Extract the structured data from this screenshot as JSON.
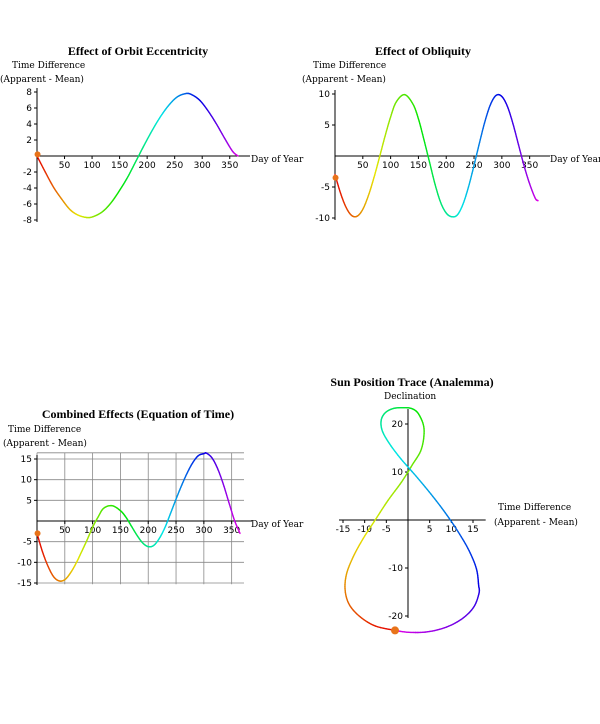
{
  "chart_data": [
    {
      "type": "line",
      "title": "Effect of Orbit Eccentricity",
      "ylabel": "Time Difference (Apparent - Mean)",
      "xlabel": "Day of Year",
      "xlim": [
        0,
        365
      ],
      "ylim": [
        -8,
        8
      ],
      "xticks": [
        50,
        100,
        150,
        200,
        250,
        300,
        350
      ],
      "yticks": [
        8,
        6,
        4,
        2,
        -2,
        -4,
        -6,
        -8
      ],
      "grid": false,
      "color": "rainbow gradient by day of year",
      "start_marker": {
        "x": 1,
        "y": 0.2
      },
      "x": [
        0,
        15,
        30,
        45,
        60,
        75,
        92,
        105,
        120,
        135,
        150,
        165,
        180,
        195,
        210,
        225,
        240,
        255,
        270,
        280,
        295,
        310,
        325,
        340,
        355,
        365
      ],
      "y": [
        0.0,
        -2.0,
        -3.9,
        -5.4,
        -6.7,
        -7.4,
        -7.7,
        -7.5,
        -6.9,
        -5.8,
        -4.3,
        -2.6,
        -0.6,
        1.4,
        3.3,
        5.0,
        6.4,
        7.4,
        7.8,
        7.7,
        7.0,
        5.7,
        4.1,
        2.3,
        0.6,
        0.0
      ]
    },
    {
      "type": "line",
      "title": "Effect of Obliquity",
      "ylabel": "Time Difference (Apparent - Mean)",
      "xlabel": "Day of Year",
      "xlim": [
        0,
        365
      ],
      "ylim": [
        -10,
        10
      ],
      "xticks": [
        50,
        100,
        150,
        200,
        250,
        300,
        350
      ],
      "yticks": [
        10,
        5,
        -5,
        -10
      ],
      "grid": false,
      "color": "rainbow gradient by day of year",
      "start_marker": {
        "x": 1,
        "y": -3.5
      },
      "x": [
        0,
        10,
        20,
        30,
        40,
        50,
        60,
        70,
        80,
        90,
        100,
        110,
        125,
        140,
        150,
        160,
        170,
        180,
        190,
        200,
        210,
        220,
        230,
        240,
        250,
        260,
        270,
        280,
        290,
        300,
        310,
        320,
        330,
        340,
        350,
        360,
        365
      ],
      "y": [
        -3.0,
        -6.0,
        -8.3,
        -9.6,
        -9.7,
        -8.6,
        -6.4,
        -3.5,
        -0.2,
        3.2,
        6.3,
        8.7,
        9.9,
        8.4,
        6.0,
        2.6,
        -1.0,
        -4.6,
        -7.5,
        -9.2,
        -9.8,
        -9.5,
        -7.8,
        -5.0,
        -1.5,
        2.2,
        5.7,
        8.4,
        9.8,
        9.6,
        8.0,
        5.2,
        1.8,
        -1.6,
        -4.5,
        -6.8,
        -7.2
      ]
    },
    {
      "type": "line",
      "title": "Combined Effects (Equation of Time)",
      "ylabel": "Time Difference (Apparent - Mean)",
      "xlabel": "Day of Year",
      "xlim": [
        0,
        365
      ],
      "ylim": [
        -15,
        15
      ],
      "xticks": [
        50,
        100,
        150,
        200,
        250,
        300,
        350
      ],
      "yticks": [
        15,
        10,
        5,
        -5,
        -10,
        -15
      ],
      "grid": true,
      "color": "rainbow gradient by day of year",
      "start_marker": {
        "x": 1,
        "y": -3.0
      },
      "x": [
        0,
        10,
        20,
        30,
        40,
        50,
        60,
        70,
        80,
        90,
        100,
        110,
        120,
        135,
        150,
        160,
        170,
        180,
        190,
        200,
        210,
        220,
        230,
        240,
        250,
        260,
        270,
        280,
        290,
        300,
        305,
        315,
        325,
        335,
        345,
        355,
        365
      ],
      "y": [
        -3.0,
        -7.5,
        -11.0,
        -13.5,
        -14.5,
        -14.2,
        -12.6,
        -10.3,
        -7.5,
        -4.6,
        -1.5,
        1.0,
        3.1,
        3.7,
        2.5,
        0.9,
        -1.3,
        -3.5,
        -5.3,
        -6.2,
        -5.9,
        -4.2,
        -1.6,
        1.8,
        5.3,
        8.6,
        11.6,
        14.1,
        15.8,
        16.3,
        16.4,
        15.2,
        12.6,
        8.9,
        4.5,
        0.2,
        -3.0
      ]
    },
    {
      "type": "line",
      "title": "Sun Position Trace (Analemma)",
      "xlabel": "Time Difference (Apparent - Mean)",
      "ylabel": "Declination",
      "xlim": [
        -15,
        17
      ],
      "ylim": [
        -23.5,
        23.5
      ],
      "xticks": [
        -15,
        -10,
        -5,
        5,
        10,
        15
      ],
      "yticks": [
        20,
        10,
        -10,
        -20
      ],
      "grid": false,
      "color": "rainbow gradient by day of year",
      "start_marker": {
        "x": -3.0,
        "y": -23.0
      },
      "x": [
        -3.0,
        -7.5,
        -11.0,
        -13.5,
        -14.5,
        -14.2,
        -12.6,
        -10.3,
        -7.5,
        -4.6,
        -1.5,
        1.0,
        3.1,
        3.7,
        2.5,
        0.9,
        -1.3,
        -3.5,
        -5.3,
        -6.2,
        -5.9,
        -4.2,
        -1.6,
        1.8,
        5.3,
        8.6,
        11.6,
        14.1,
        15.8,
        16.3,
        16.4,
        15.2,
        12.6,
        8.9,
        4.5,
        0.2,
        -3.0
      ],
      "y": [
        -23.0,
        -22.1,
        -20.2,
        -17.7,
        -14.7,
        -11.3,
        -7.6,
        -3.8,
        0.1,
        4.1,
        7.9,
        11.5,
        14.8,
        19.0,
        22.0,
        23.2,
        23.4,
        23.2,
        22.3,
        20.7,
        18.5,
        15.8,
        12.7,
        9.2,
        5.4,
        1.5,
        -2.5,
        -6.4,
        -10.2,
        -13.6,
        -15.2,
        -18.1,
        -20.5,
        -22.3,
        -23.3,
        -23.4,
        -23.0
      ]
    }
  ]
}
